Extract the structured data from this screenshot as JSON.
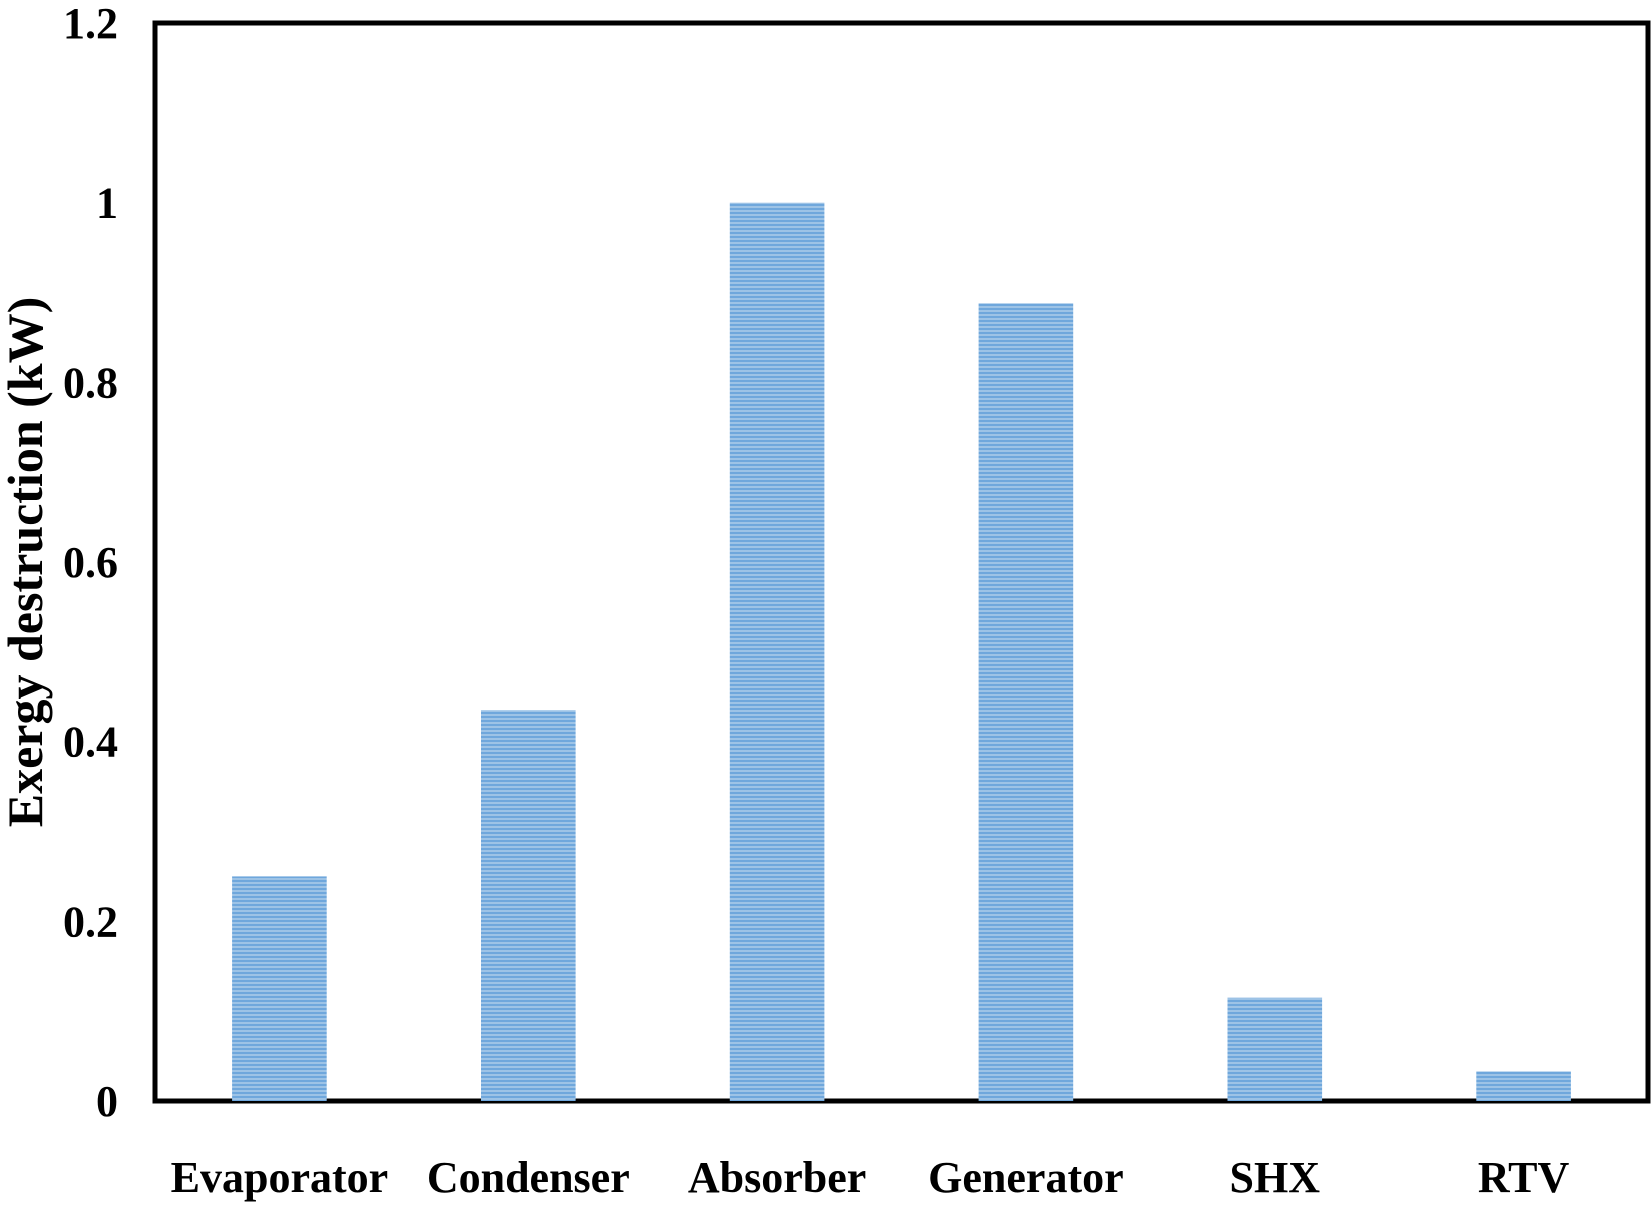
{
  "chart_data": {
    "type": "bar",
    "categories": [
      "Evaporator",
      "Condenser",
      "Absorber",
      "Generator",
      "SHX",
      "RTV"
    ],
    "values": [
      0.25,
      0.435,
      1.0,
      0.888,
      0.115,
      0.033
    ],
    "xlabel": "",
    "ylabel": "Exergy destruction (kW)",
    "ylim": [
      0,
      1.2
    ],
    "yticks": [
      "0",
      "0.2",
      "0.4",
      "0.6",
      "0.8",
      "1",
      "1.2"
    ],
    "grid": false,
    "legend": "none",
    "bar_color": "#5b9bd5"
  }
}
